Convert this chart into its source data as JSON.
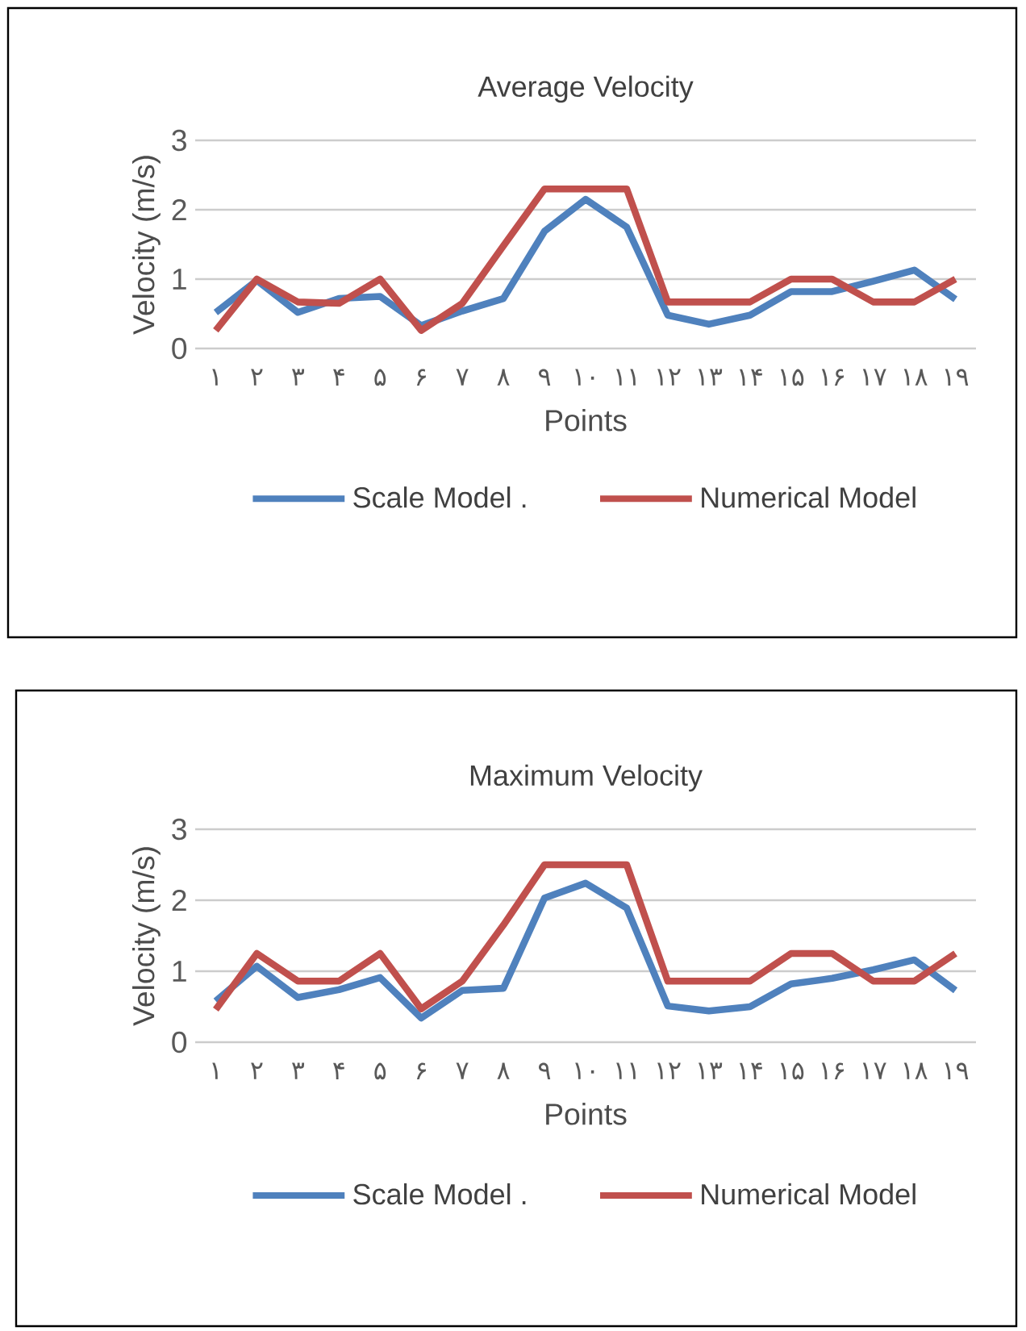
{
  "chart_data": [
    {
      "type": "line",
      "title": "Average Velocity",
      "xlabel": "Points",
      "ylabel": "Velocity (m/s)",
      "categories": [
        "۱",
        "۲",
        "۳",
        "۴",
        "۵",
        "۶",
        "۷",
        "۸",
        "۹",
        "۱۰",
        "۱۱",
        "۱۲",
        "۱۳",
        "۱۴",
        "۱۵",
        "۱۶",
        "۱۷",
        "۱۸",
        "۱۹"
      ],
      "series": [
        {
          "name": "Scale Model .",
          "color": "#4f81bd",
          "values": [
            0.52,
            0.98,
            0.52,
            0.72,
            0.75,
            0.33,
            0.54,
            0.72,
            1.69,
            2.15,
            1.75,
            0.48,
            0.35,
            0.48,
            0.82,
            0.82,
            0.97,
            1.13,
            0.71
          ]
        },
        {
          "name": "Numerical Model",
          "color": "#c0504d",
          "values": [
            0.26,
            1.0,
            0.67,
            0.65,
            1.0,
            0.26,
            0.65,
            1.48,
            2.3,
            2.3,
            2.3,
            0.67,
            0.67,
            0.67,
            1.0,
            1.0,
            0.67,
            0.67,
            1.0
          ]
        }
      ],
      "ylim": [
        0,
        3
      ],
      "yticks": [
        0,
        1,
        2,
        3
      ],
      "grid": "y",
      "legend": "bottom",
      "marker": "none",
      "line_style": "solid"
    },
    {
      "type": "line",
      "title": "Maximum Velocity",
      "xlabel": "Points",
      "ylabel": "Velocity (m/s)",
      "categories": [
        "۱",
        "۲",
        "۳",
        "۴",
        "۵",
        "۶",
        "۷",
        "۸",
        "۹",
        "۱۰",
        "۱۱",
        "۱۲",
        "۱۳",
        "۱۴",
        "۱۵",
        "۱۶",
        "۱۷",
        "۱۸",
        "۱۹"
      ],
      "series": [
        {
          "name": "Scale Model .",
          "color": "#4f81bd",
          "values": [
            0.58,
            1.07,
            0.63,
            0.74,
            0.91,
            0.34,
            0.73,
            0.76,
            2.03,
            2.24,
            1.89,
            0.51,
            0.44,
            0.5,
            0.82,
            0.9,
            1.02,
            1.16,
            0.73
          ]
        },
        {
          "name": "Numerical Model",
          "color": "#c0504d",
          "values": [
            0.46,
            1.25,
            0.86,
            0.86,
            1.25,
            0.47,
            0.86,
            1.65,
            2.5,
            2.5,
            2.5,
            0.86,
            0.86,
            0.86,
            1.25,
            1.25,
            0.86,
            0.86,
            1.25
          ]
        }
      ],
      "ylim": [
        0,
        3
      ],
      "yticks": [
        0,
        1,
        2,
        3
      ],
      "grid": "y",
      "legend": "bottom",
      "marker": "none",
      "line_style": "solid"
    }
  ]
}
